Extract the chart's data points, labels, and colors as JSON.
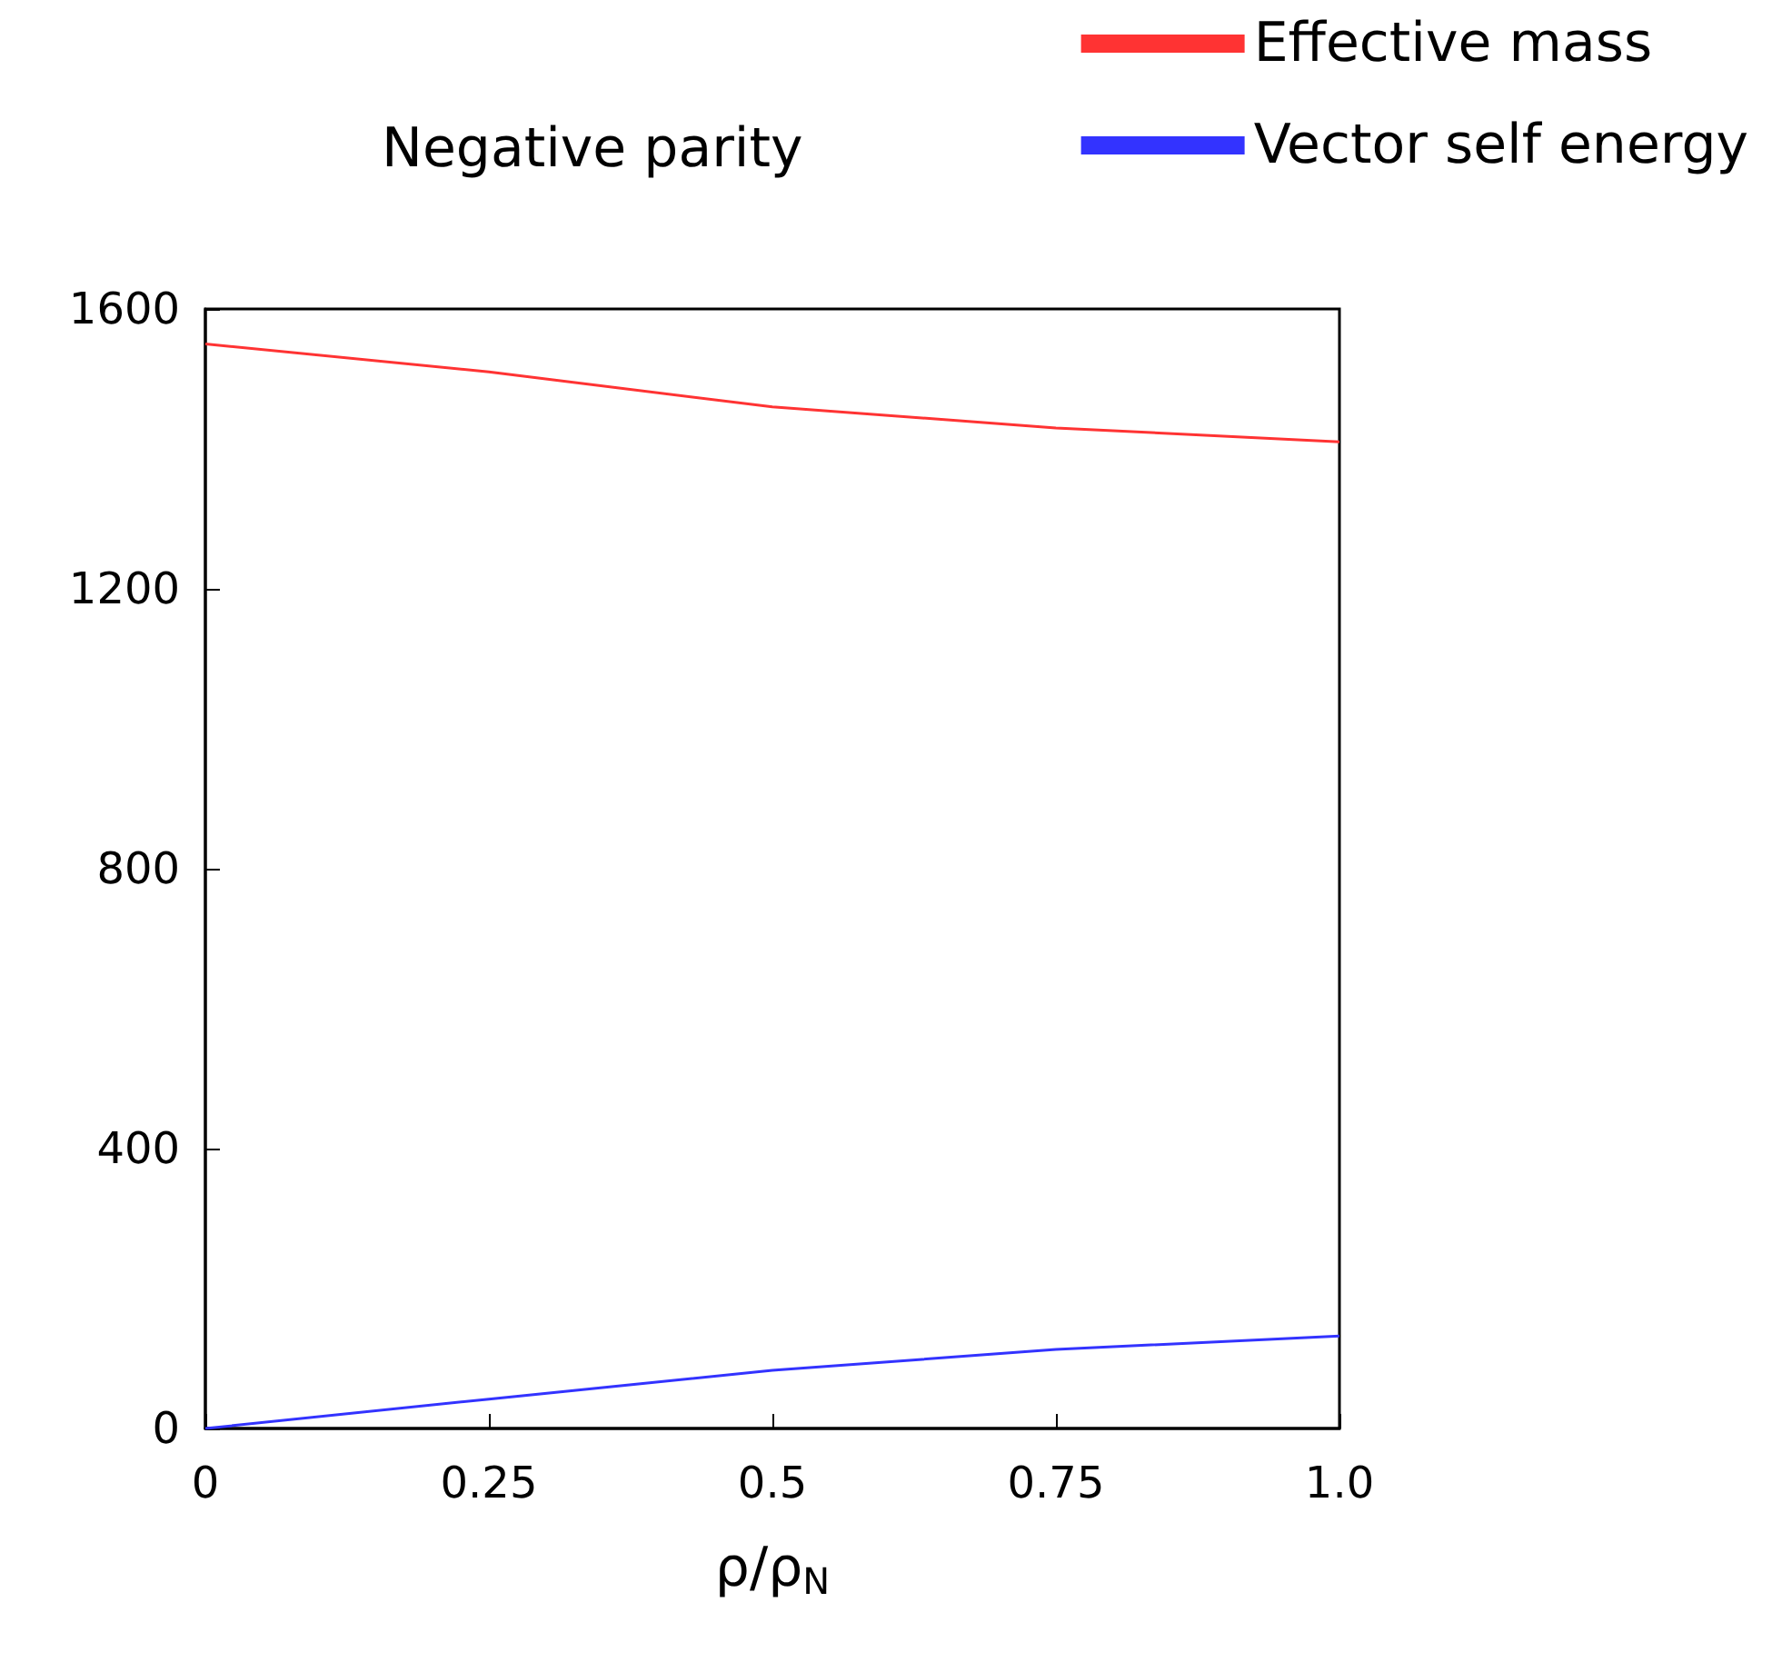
{
  "chart_data": {
    "type": "line",
    "title": "Negative parity",
    "xlabel": "ρ/ρ$_{N}$",
    "x": [
      0,
      0.25,
      0.5,
      0.75,
      1
    ],
    "series": [
      {
        "name": "Effective mass",
        "color": "#ff3333",
        "values": [
          1550,
          1510,
          1460,
          1430,
          1410
        ]
      },
      {
        "name": "Vector self energy",
        "color": "#3333ff",
        "values": [
          0,
          42,
          83,
          113,
          132
        ]
      }
    ],
    "xlim": [
      0,
      1
    ],
    "xticks": [
      0,
      0.25,
      0.5,
      0.75,
      {
        "value": 1,
        "label": "1.0"
      }
    ],
    "ylim": [
      0,
      1600
    ],
    "yticks": [
      0,
      400,
      800,
      1200,
      1600
    ],
    "grid": false,
    "legend": "top right",
    "marker": "none",
    "line_style": "solid"
  }
}
